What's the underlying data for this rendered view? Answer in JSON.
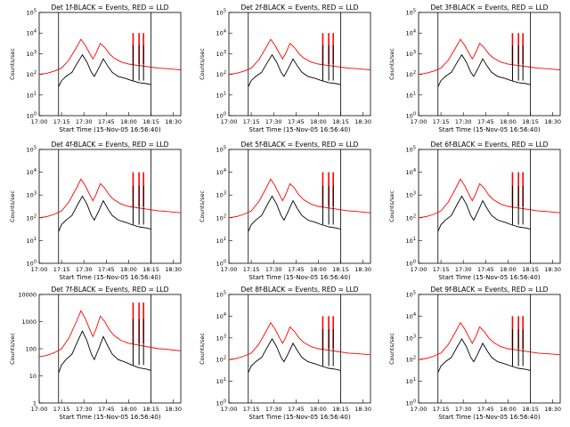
{
  "chart_data": [
    {
      "type": "line",
      "title": "Det 1f-BLACK = Events, RED = LLD",
      "xlabel": "Start Time (15-Nov-05 16:56:40)",
      "ylabel": "Counts/sec",
      "y_scale": "log",
      "ylim": [
        1,
        100000
      ],
      "yticks": [
        "10^0",
        "10^1",
        "10^2",
        "10^3",
        "10^4",
        "10^5"
      ],
      "xticks": [
        "17:00",
        "17:15",
        "17:30",
        "17:45",
        "18:00",
        "18:15",
        "18:30"
      ],
      "xlim": [
        "17:00",
        "18:35"
      ],
      "vlines": [
        "17:13",
        "18:15"
      ],
      "series": [
        {
          "name": "Events",
          "color": "#000000"
        },
        {
          "name": "LLD",
          "color": "#ff0000"
        }
      ]
    },
    {
      "type": "line",
      "title": "Det 2f-BLACK = Events, RED = LLD",
      "xlabel": "Start Time (15-Nov-05 16:56:40)",
      "ylabel": "Counts/sec",
      "y_scale": "log",
      "ylim": [
        1,
        100000
      ],
      "yticks": [
        "10^0",
        "10^1",
        "10^2",
        "10^3",
        "10^4",
        "10^5"
      ],
      "xticks": [
        "17:00",
        "17:15",
        "17:30",
        "17:45",
        "18:00",
        "18:15",
        "18:30"
      ],
      "xlim": [
        "17:00",
        "18:35"
      ],
      "vlines": [
        "17:13",
        "18:15"
      ],
      "series": [
        {
          "name": "Events",
          "color": "#000000"
        },
        {
          "name": "LLD",
          "color": "#ff0000"
        }
      ]
    },
    {
      "type": "line",
      "title": "Det 3f-BLACK = Events, RED = LLD",
      "xlabel": "Start Time (15-Nov-05 16:56:40)",
      "ylabel": "Counts/sec",
      "y_scale": "log",
      "ylim": [
        1,
        100000
      ],
      "yticks": [
        "10^0",
        "10^1",
        "10^2",
        "10^3",
        "10^4",
        "10^5"
      ],
      "xticks": [
        "17:00",
        "17:15",
        "17:30",
        "17:45",
        "18:00",
        "18:15",
        "18:30"
      ],
      "xlim": [
        "17:00",
        "18:35"
      ],
      "vlines": [
        "17:13",
        "18:15"
      ],
      "series": [
        {
          "name": "Events",
          "color": "#000000"
        },
        {
          "name": "LLD",
          "color": "#ff0000"
        }
      ]
    },
    {
      "type": "line",
      "title": "Det 4f-BLACK = Events, RED = LLD",
      "xlabel": "Start Time (15-Nov-05 16:56:40)",
      "ylabel": "Counts/sec",
      "y_scale": "log",
      "ylim": [
        1,
        100000
      ],
      "yticks": [
        "10^0",
        "10^1",
        "10^2",
        "10^3",
        "10^4",
        "10^5"
      ],
      "xticks": [
        "17:00",
        "17:15",
        "17:30",
        "17:45",
        "18:00",
        "18:15",
        "18:30"
      ],
      "xlim": [
        "17:00",
        "18:35"
      ],
      "vlines": [
        "17:13",
        "18:15"
      ],
      "series": [
        {
          "name": "Events",
          "color": "#000000"
        },
        {
          "name": "LLD",
          "color": "#ff0000"
        }
      ]
    },
    {
      "type": "line",
      "title": "Det 5f-BLACK = Events, RED = LLD",
      "xlabel": "Start Time (15-Nov-05 16:56:40)",
      "ylabel": "Counts/sec",
      "y_scale": "log",
      "ylim": [
        1,
        100000
      ],
      "yticks": [
        "10^0",
        "10^1",
        "10^2",
        "10^3",
        "10^4",
        "10^5"
      ],
      "xticks": [
        "17:00",
        "17:15",
        "17:30",
        "17:45",
        "18:00",
        "18:15",
        "18:30"
      ],
      "xlim": [
        "17:00",
        "18:35"
      ],
      "vlines": [
        "17:13",
        "18:15"
      ],
      "series": [
        {
          "name": "Events",
          "color": "#000000"
        },
        {
          "name": "LLD",
          "color": "#ff0000"
        }
      ]
    },
    {
      "type": "line",
      "title": "Det 6f-BLACK = Events, RED = LLD",
      "xlabel": "Start Time (15-Nov-05 16:56:40)",
      "ylabel": "Counts/sec",
      "y_scale": "log",
      "ylim": [
        1,
        100000
      ],
      "yticks": [
        "10^0",
        "10^1",
        "10^2",
        "10^3",
        "10^4",
        "10^5"
      ],
      "xticks": [
        "17:00",
        "17:15",
        "17:30",
        "17:45",
        "18:00",
        "18:15",
        "18:30"
      ],
      "xlim": [
        "17:00",
        "18:35"
      ],
      "vlines": [
        "17:13",
        "18:15"
      ],
      "series": [
        {
          "name": "Events",
          "color": "#000000"
        },
        {
          "name": "LLD",
          "color": "#ff0000"
        }
      ]
    },
    {
      "type": "line",
      "title": "Det 7f-BLACK = Events, RED = LLD",
      "xlabel": "Start Time (15-Nov-05 16:56:40)",
      "ylabel": "Counts/sec",
      "y_scale": "log",
      "ylim": [
        1,
        10000
      ],
      "yticks": [
        "10000",
        "1000",
        "100",
        "10",
        "1"
      ],
      "xticks": [
        "17:00",
        "17:15",
        "17:30",
        "17:45",
        "18:00",
        "18:15",
        "18:30"
      ],
      "xlim": [
        "17:00",
        "18:35"
      ],
      "vlines": [
        "17:13",
        "18:15"
      ],
      "series": [
        {
          "name": "Events",
          "color": "#000000"
        },
        {
          "name": "LLD",
          "color": "#ff0000"
        }
      ]
    },
    {
      "type": "line",
      "title": "Det 8f-BLACK = Events, RED = LLD",
      "xlabel": "Start Time (15-Nov-05 16:56:40)",
      "ylabel": "Counts/sec",
      "y_scale": "log",
      "ylim": [
        1,
        100000
      ],
      "yticks": [
        "10^0",
        "10^1",
        "10^2",
        "10^3",
        "10^4",
        "10^5"
      ],
      "xticks": [
        "17:00",
        "17:15",
        "17:30",
        "17:45",
        "18:00",
        "18:15",
        "18:30"
      ],
      "xlim": [
        "17:00",
        "18:35"
      ],
      "vlines": [
        "17:13",
        "18:15"
      ],
      "series": [
        {
          "name": "Events",
          "color": "#000000"
        },
        {
          "name": "LLD",
          "color": "#ff0000"
        }
      ]
    },
    {
      "type": "line",
      "title": "Det 9f-BLACK = Events, RED = LLD",
      "xlabel": "Start Time (15-Nov-05 16:56:40)",
      "ylabel": "Counts/sec",
      "y_scale": "log",
      "ylim": [
        1,
        100000
      ],
      "yticks": [
        "10^0",
        "10^1",
        "10^2",
        "10^3",
        "10^4",
        "10^5"
      ],
      "xticks": [
        "17:00",
        "17:15",
        "17:30",
        "17:45",
        "18:00",
        "18:15",
        "18:30"
      ],
      "xlim": [
        "17:00",
        "18:35"
      ],
      "vlines": [
        "17:13",
        "18:15"
      ],
      "series": [
        {
          "name": "Events",
          "color": "#000000"
        },
        {
          "name": "LLD",
          "color": "#ff0000"
        }
      ]
    }
  ]
}
